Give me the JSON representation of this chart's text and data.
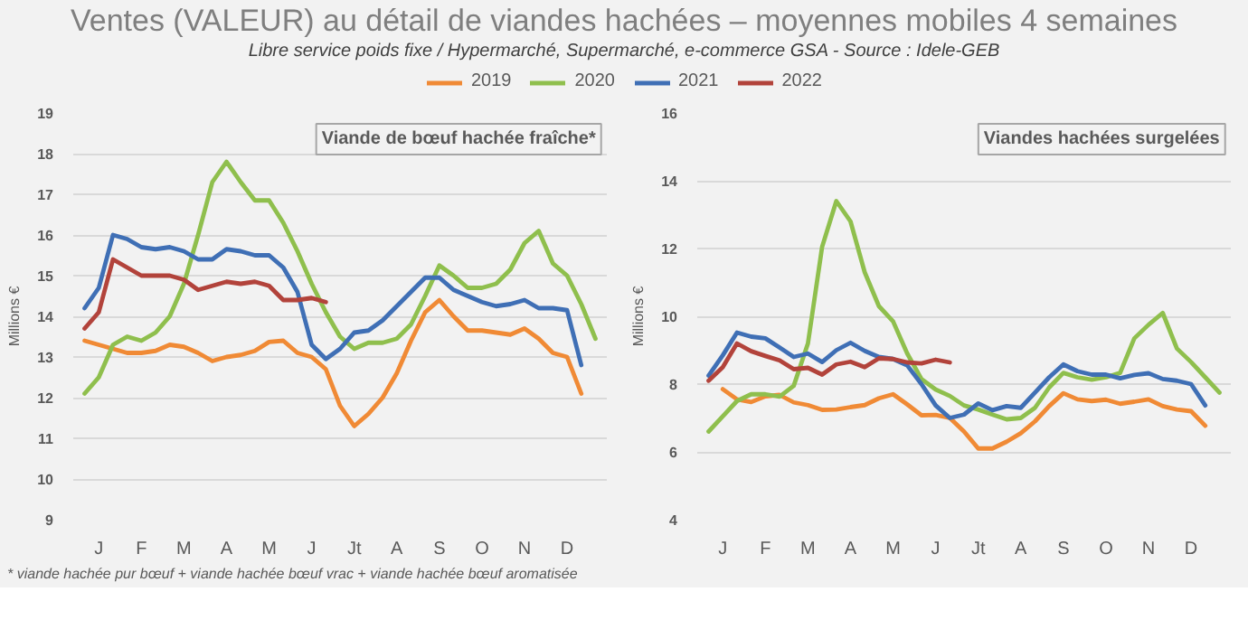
{
  "chart_data": [
    {
      "type": "line",
      "title": "Ventes (VALEUR) au détail de viandes hachées – moyennes mobiles 4 semaines",
      "subtitle": "Libre service poids fixe / Hypermarché, Supermarché, e-commerce GSA - Source : Idele-GEB",
      "ylabel": "Millions €",
      "annotations": [
        "Viande de bœuf hachée fraîche*",
        "* viande hachée pur bœuf + viande hachée bœuf vrac + viande hachée bœuf aromatisée"
      ],
      "categories": [
        null,
        "J",
        null,
        null,
        "F",
        null,
        null,
        "M",
        null,
        null,
        "A",
        null,
        null,
        "M",
        null,
        null,
        "J",
        null,
        null,
        "Jt",
        null,
        null,
        "A",
        null,
        null,
        "S",
        null,
        null,
        "O",
        null,
        null,
        "N",
        null,
        null,
        "D",
        null,
        null
      ],
      "ylim": [
        9,
        19
      ],
      "yticks": [
        9,
        10,
        11,
        12,
        13,
        14,
        15,
        16,
        17,
        18,
        19
      ],
      "grid": "y",
      "legend": "top",
      "series": [
        {
          "name": "2019",
          "color": "#f08a35",
          "values": [
            13.4,
            13.3,
            13.2,
            13.1,
            13.1,
            13.15,
            13.3,
            13.25,
            13.1,
            12.9,
            13.0,
            13.05,
            13.15,
            13.37,
            13.4,
            13.1,
            13.0,
            12.7,
            11.8,
            11.3,
            11.6,
            12.0,
            12.6,
            13.4,
            14.1,
            14.4,
            14.0,
            13.65,
            13.65,
            13.6,
            13.55,
            13.7,
            13.45,
            13.1,
            13.0,
            12.1,
            null
          ]
        },
        {
          "name": "2020",
          "color": "#8fbf4d",
          "values": [
            12.1,
            12.5,
            13.3,
            13.5,
            13.4,
            13.6,
            14.0,
            14.8,
            16.0,
            17.3,
            17.8,
            17.3,
            16.85,
            16.85,
            16.3,
            15.6,
            14.8,
            14.1,
            13.5,
            13.2,
            13.35,
            13.35,
            13.45,
            13.8,
            14.5,
            15.25,
            15.0,
            14.7,
            14.7,
            14.8,
            15.15,
            15.8,
            16.1,
            15.3,
            15.0,
            14.3,
            13.45
          ]
        },
        {
          "name": "2021",
          "color": "#3f6fb5",
          "values": [
            14.2,
            14.7,
            16.0,
            15.9,
            15.7,
            15.65,
            15.7,
            15.6,
            15.4,
            15.4,
            15.65,
            15.6,
            15.5,
            15.5,
            15.2,
            14.6,
            13.3,
            12.95,
            13.2,
            13.6,
            13.65,
            13.9,
            14.25,
            14.6,
            14.95,
            14.95,
            14.65,
            14.5,
            14.35,
            14.25,
            14.3,
            14.4,
            14.2,
            14.2,
            14.15,
            12.8,
            null
          ]
        },
        {
          "name": "2022",
          "color": "#b2433b",
          "values": [
            13.7,
            14.1,
            15.4,
            15.2,
            15.0,
            15.0,
            15.0,
            14.9,
            14.65,
            14.75,
            14.85,
            14.8,
            14.85,
            14.75,
            14.4,
            14.4,
            14.45,
            14.35,
            null,
            null,
            null,
            null,
            null,
            null,
            null,
            null,
            null,
            null,
            null,
            null,
            null,
            null,
            null,
            null,
            null,
            null,
            null
          ]
        }
      ]
    },
    {
      "type": "line",
      "ylabel": "Millions €",
      "annotations": [
        "Viandes hachées surgelées"
      ],
      "categories": [
        null,
        "J",
        null,
        null,
        "F",
        null,
        null,
        "M",
        null,
        null,
        "A",
        null,
        null,
        "M",
        null,
        null,
        "J",
        null,
        null,
        "Jt",
        null,
        null,
        "A",
        null,
        null,
        "S",
        null,
        null,
        "O",
        null,
        null,
        "N",
        null,
        null,
        "D",
        null,
        null
      ],
      "ylim": [
        4,
        16
      ],
      "yticks": [
        4,
        6,
        8,
        10,
        12,
        14,
        16
      ],
      "grid": "y",
      "series": [
        {
          "color": "#f08a35",
          "values": [
            null,
            7.85,
            7.55,
            7.47,
            7.64,
            7.68,
            7.46,
            7.38,
            7.24,
            7.25,
            7.32,
            7.38,
            7.58,
            7.7,
            7.4,
            7.08,
            7.09,
            7.0,
            6.6,
            6.1,
            6.1,
            6.3,
            6.55,
            6.9,
            7.35,
            7.73,
            7.55,
            7.5,
            7.54,
            7.42,
            7.48,
            7.55,
            7.35,
            7.25,
            7.2,
            6.77,
            null
          ]
        },
        {
          "color": "#8fbf4d",
          "values": [
            6.6,
            7.05,
            7.5,
            7.7,
            7.7,
            7.63,
            7.95,
            9.2,
            12.05,
            13.4,
            12.8,
            11.3,
            10.3,
            9.85,
            8.9,
            8.15,
            7.84,
            7.65,
            7.37,
            7.25,
            7.1,
            6.96,
            7.0,
            7.3,
            7.9,
            8.33,
            8.2,
            8.13,
            8.2,
            8.33,
            9.35,
            9.75,
            10.1,
            9.05,
            8.65,
            8.2,
            7.75
          ]
        },
        {
          "color": "#3f6fb5",
          "values": [
            8.25,
            8.85,
            9.52,
            9.4,
            9.35,
            9.08,
            8.8,
            8.9,
            8.65,
            9.0,
            9.22,
            8.98,
            8.8,
            8.74,
            8.55,
            8.0,
            7.37,
            7.0,
            7.1,
            7.43,
            7.23,
            7.35,
            7.3,
            7.75,
            8.2,
            8.58,
            8.38,
            8.28,
            8.28,
            8.17,
            8.27,
            8.32,
            8.15,
            8.1,
            8.0,
            7.37,
            null
          ]
        },
        {
          "color": "#b2433b",
          "values": [
            8.1,
            8.5,
            9.2,
            8.97,
            8.83,
            8.7,
            8.44,
            8.48,
            8.28,
            8.58,
            8.66,
            8.5,
            8.76,
            8.74,
            8.64,
            8.61,
            8.72,
            8.64,
            null,
            null,
            null,
            null,
            null,
            null,
            null,
            null,
            null,
            null,
            null,
            null,
            null,
            null,
            null,
            null,
            null,
            null,
            null
          ]
        }
      ]
    }
  ]
}
